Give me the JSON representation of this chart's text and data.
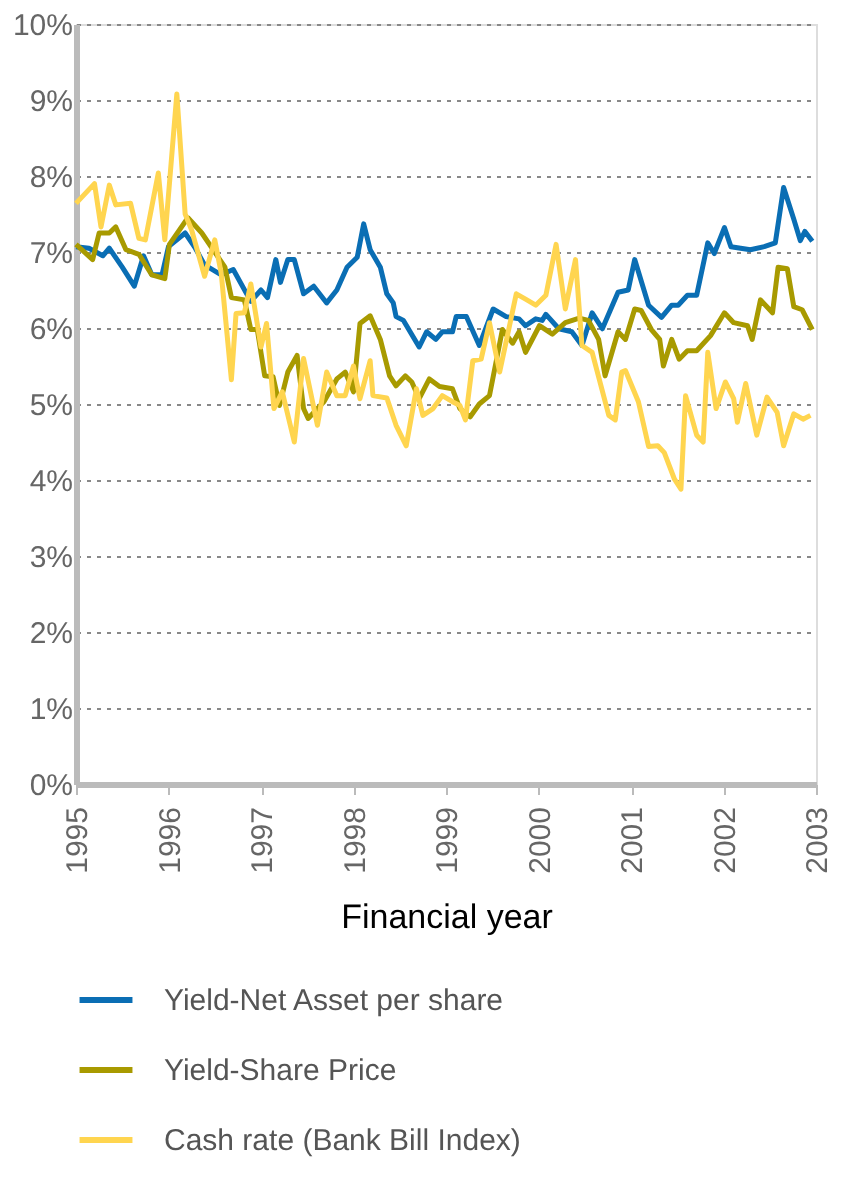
{
  "chart_data": {
    "type": "line",
    "xlabel": "Financial year",
    "xlim": [
      1995,
      2003
    ],
    "xticks": [
      1995,
      1996,
      1997,
      1998,
      1999,
      2000,
      2001,
      2002,
      2003
    ],
    "ylim": [
      0,
      10
    ],
    "yticks": [
      {
        "value": 0,
        "label": "0%"
      },
      {
        "value": 1,
        "label": "1%"
      },
      {
        "value": 2,
        "label": "2%"
      },
      {
        "value": 3,
        "label": "3%"
      },
      {
        "value": 4,
        "label": "4%"
      },
      {
        "value": 5,
        "label": "5%"
      },
      {
        "value": 6,
        "label": "6%"
      },
      {
        "value": 7,
        "label": "7%"
      },
      {
        "value": 8,
        "label": "8%"
      },
      {
        "value": 9,
        "label": "9%"
      },
      {
        "value": 10,
        "label": "10%"
      }
    ],
    "grid": "y",
    "legend": "bottom",
    "line_style": "solid",
    "marker": "none",
    "series": [
      {
        "name": "Yield-Net Asset per share",
        "color": "#0a6eb4",
        "x": [
          1995.0,
          1995.14,
          1995.29,
          1995.36,
          1995.5,
          1995.63,
          1995.73,
          1995.82,
          1995.93,
          1996.0,
          1996.18,
          1996.29,
          1996.39,
          1996.57,
          1996.7,
          1996.89,
          1997.0,
          1997.07,
          1997.16,
          1997.21,
          1997.29,
          1997.36,
          1997.46,
          1997.57,
          1997.71,
          1997.82,
          1997.93,
          1998.04,
          1998.11,
          1998.18,
          1998.29,
          1998.36,
          1998.43,
          1998.46,
          1998.54,
          1998.71,
          1998.79,
          1998.89,
          1998.96,
          1999.07,
          1999.11,
          1999.22,
          1999.36,
          1999.51,
          1999.65,
          1999.79,
          1999.86,
          1999.97,
          2000.04,
          2000.08,
          2000.22,
          2000.36,
          2000.47,
          2000.58,
          2000.69,
          2000.86,
          2000.97,
          2001.04,
          2001.19,
          2001.33,
          2001.44,
          2001.51,
          2001.61,
          2001.71,
          2001.83,
          2001.9,
          2002.01,
          2002.08,
          2002.29,
          2002.44,
          2002.56,
          2002.65,
          2002.76,
          2002.83,
          2002.88,
          2002.96
        ],
        "values": [
          7.07,
          7.05,
          6.95,
          7.05,
          6.8,
          6.55,
          6.95,
          6.7,
          6.7,
          7.07,
          7.25,
          7.05,
          6.83,
          6.7,
          6.77,
          6.35,
          6.5,
          6.4,
          6.9,
          6.6,
          6.9,
          6.9,
          6.45,
          6.55,
          6.33,
          6.5,
          6.8,
          6.93,
          7.37,
          7.03,
          6.8,
          6.45,
          6.33,
          6.15,
          6.1,
          5.75,
          5.95,
          5.85,
          5.95,
          5.95,
          6.15,
          6.15,
          5.77,
          6.25,
          6.15,
          6.12,
          6.03,
          6.12,
          6.1,
          6.18,
          5.99,
          5.95,
          5.77,
          6.2,
          5.99,
          6.47,
          6.5,
          6.9,
          6.3,
          6.14,
          6.3,
          6.3,
          6.43,
          6.43,
          7.12,
          6.98,
          7.32,
          7.07,
          7.03,
          7.07,
          7.12,
          7.85,
          7.43,
          7.15,
          7.27,
          7.14
        ]
      },
      {
        "name": "Yield-Share Price",
        "color": "#a89a00",
        "x": [
          1995.0,
          1995.18,
          1995.25,
          1995.36,
          1995.43,
          1995.54,
          1995.68,
          1995.82,
          1995.96,
          1996.01,
          1996.21,
          1996.36,
          1996.61,
          1996.68,
          1996.82,
          1996.89,
          1996.96,
          1997.04,
          1997.13,
          1997.2,
          1997.29,
          1997.39,
          1997.46,
          1997.51,
          1997.68,
          1997.82,
          1997.91,
          1998.0,
          1998.07,
          1998.18,
          1998.29,
          1998.39,
          1998.46,
          1998.56,
          1998.63,
          1998.71,
          1998.82,
          1998.93,
          1999.07,
          1999.15,
          1999.26,
          1999.36,
          1999.47,
          1999.61,
          1999.72,
          1999.79,
          1999.86,
          2000.01,
          2000.15,
          2000.29,
          2000.44,
          2000.54,
          2000.65,
          2000.72,
          2000.86,
          2000.94,
          2001.04,
          2001.11,
          2001.22,
          2001.31,
          2001.35,
          2001.44,
          2001.52,
          2001.61,
          2001.71,
          2001.86,
          2002.01,
          2002.11,
          2002.26,
          2002.31,
          2002.4,
          2002.53,
          2002.59,
          2002.69,
          2002.76,
          2002.85,
          2002.96
        ],
        "values": [
          7.1,
          6.9,
          7.25,
          7.25,
          7.33,
          7.03,
          6.97,
          6.7,
          6.65,
          7.1,
          7.45,
          7.25,
          6.8,
          6.4,
          6.37,
          5.98,
          5.98,
          5.37,
          5.36,
          4.98,
          5.42,
          5.64,
          4.94,
          4.81,
          5.03,
          5.33,
          5.42,
          5.16,
          6.06,
          6.16,
          5.85,
          5.37,
          5.24,
          5.37,
          5.29,
          5.07,
          5.33,
          5.23,
          5.2,
          4.94,
          4.83,
          5.0,
          5.11,
          5.98,
          5.8,
          5.95,
          5.68,
          6.03,
          5.92,
          6.07,
          6.13,
          6.1,
          5.85,
          5.37,
          5.95,
          5.85,
          6.25,
          6.23,
          5.98,
          5.85,
          5.5,
          5.85,
          5.59,
          5.7,
          5.7,
          5.9,
          6.2,
          6.07,
          6.03,
          5.85,
          6.37,
          6.2,
          6.8,
          6.78,
          6.28,
          6.24,
          5.98
        ]
      },
      {
        "name": "Cash rate (Bank Bill Index)",
        "color": "#ffd54f",
        "x": [
          1995.0,
          1995.2,
          1995.27,
          1995.36,
          1995.43,
          1995.59,
          1995.68,
          1995.75,
          1995.89,
          1995.96,
          1996.09,
          1996.18,
          1996.25,
          1996.39,
          1996.5,
          1996.57,
          1996.68,
          1996.73,
          1996.82,
          1996.89,
          1997.0,
          1997.06,
          1997.14,
          1997.23,
          1997.36,
          1997.46,
          1997.61,
          1997.71,
          1997.82,
          1997.91,
          1998.0,
          1998.07,
          1998.18,
          1998.21,
          1998.36,
          1998.46,
          1998.57,
          1998.68,
          1998.75,
          1998.86,
          1998.96,
          1999.07,
          1999.15,
          1999.21,
          1999.29,
          1999.38,
          1999.47,
          1999.58,
          1999.76,
          1999.86,
          1999.97,
          2000.08,
          2000.19,
          2000.29,
          2000.4,
          2000.47,
          2000.58,
          2000.76,
          2000.83,
          2000.9,
          2000.94,
          2001.08,
          2001.19,
          2001.29,
          2001.36,
          2001.47,
          2001.54,
          2001.59,
          2001.71,
          2001.78,
          2001.83,
          2001.92,
          2002.02,
          2002.11,
          2002.15,
          2002.24,
          2002.36,
          2002.47,
          2002.58,
          2002.65,
          2002.76,
          2002.86,
          2002.94
        ],
        "values": [
          7.64,
          7.9,
          7.33,
          7.88,
          7.62,
          7.64,
          7.18,
          7.16,
          8.04,
          7.16,
          9.08,
          7.5,
          7.29,
          6.68,
          7.16,
          6.72,
          5.32,
          6.19,
          6.2,
          6.58,
          5.75,
          6.06,
          4.94,
          5.16,
          4.5,
          5.6,
          4.72,
          5.42,
          5.11,
          5.11,
          5.5,
          5.07,
          5.57,
          5.11,
          5.08,
          4.72,
          4.45,
          5.2,
          4.85,
          4.94,
          5.11,
          5.03,
          4.98,
          4.79,
          5.57,
          5.59,
          6.07,
          5.42,
          6.45,
          6.38,
          6.3,
          6.43,
          7.1,
          6.25,
          6.9,
          5.77,
          5.68,
          4.85,
          4.79,
          5.42,
          5.44,
          5.03,
          4.44,
          4.45,
          4.36,
          4.01,
          3.88,
          5.11,
          4.59,
          4.5,
          5.68,
          4.94,
          5.29,
          5.07,
          4.76,
          5.27,
          4.59,
          5.09,
          4.89,
          4.45,
          4.87,
          4.8,
          4.85
        ]
      }
    ]
  }
}
